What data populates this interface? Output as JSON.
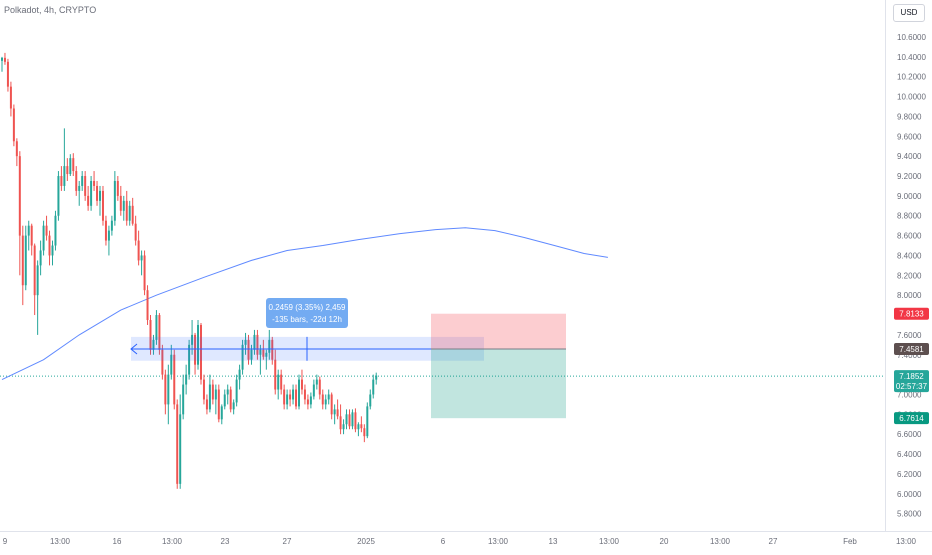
{
  "header": {
    "symbol_title": "Polkadot, 4h, CRYPTO",
    "currency": "USD"
  },
  "chart_data": {
    "type": "candlestick",
    "title": "Polkadot, 4h, CRYPTO",
    "y_axis_labels": [
      "10.6000",
      "10.4000",
      "10.2000",
      "10.0000",
      "9.8000",
      "9.6000",
      "9.4000",
      "9.2000",
      "9.0000",
      "8.8000",
      "8.6000",
      "8.4000",
      "8.2000",
      "8.0000",
      "7.8000",
      "7.6000",
      "7.4000",
      "7.2000",
      "7.0000",
      "6.8000",
      "6.6000",
      "6.4000",
      "6.2000",
      "6.0000",
      "5.8000"
    ],
    "y_axis_values": [
      10.6,
      10.4,
      10.2,
      10.0,
      9.8,
      9.6,
      9.4,
      9.2,
      9.0,
      8.8,
      8.6,
      8.4,
      8.2,
      8.0,
      7.8,
      7.6,
      7.4,
      7.2,
      7.0,
      6.8,
      6.6,
      6.4,
      6.2,
      6.0,
      5.8
    ],
    "x_axis_labels": [
      "9",
      "13:00",
      "16",
      "13:00",
      "23",
      "27",
      "2025",
      "6",
      "13:00",
      "13",
      "13:00",
      "20",
      "13:00",
      "27",
      "Feb",
      "13:00"
    ],
    "colors": {
      "up": "#26a69a",
      "down": "#ef5350",
      "ma": "#2962ff",
      "last_price": "#26a69a",
      "stop": "#f23645",
      "target": "#089981",
      "entry": "#5d4f4f"
    },
    "candles": [
      [
        10.36,
        10.4,
        10.25,
        10.39
      ],
      [
        10.39,
        10.44,
        10.32,
        10.35
      ],
      [
        10.35,
        10.38,
        10.05,
        10.1
      ],
      [
        10.1,
        10.15,
        9.8,
        9.88
      ],
      [
        9.88,
        9.92,
        9.5,
        9.55
      ],
      [
        9.55,
        9.58,
        9.3,
        9.4
      ],
      [
        9.4,
        9.45,
        8.2,
        8.6
      ],
      [
        8.6,
        8.7,
        7.9,
        8.1
      ],
      [
        8.1,
        8.7,
        8.05,
        8.6
      ],
      [
        8.6,
        8.75,
        8.45,
        8.7
      ],
      [
        8.7,
        8.72,
        8.4,
        8.5
      ],
      [
        8.5,
        8.52,
        7.8,
        8.0
      ],
      [
        8.0,
        8.35,
        7.6,
        8.3
      ],
      [
        8.3,
        8.55,
        8.2,
        8.45
      ],
      [
        8.45,
        8.75,
        8.4,
        8.7
      ],
      [
        8.7,
        8.8,
        8.55,
        8.6
      ],
      [
        8.6,
        8.65,
        8.3,
        8.4
      ],
      [
        8.4,
        8.55,
        8.3,
        8.5
      ],
      [
        8.5,
        8.85,
        8.45,
        8.8
      ],
      [
        8.8,
        9.25,
        8.75,
        9.2
      ],
      [
        9.2,
        9.3,
        9.05,
        9.1
      ],
      [
        9.1,
        9.68,
        9.05,
        9.3
      ],
      [
        9.3,
        9.38,
        9.15,
        9.22
      ],
      [
        9.22,
        9.42,
        9.2,
        9.38
      ],
      [
        9.38,
        9.43,
        9.2,
        9.25
      ],
      [
        9.25,
        9.3,
        9.0,
        9.05
      ],
      [
        9.05,
        9.15,
        8.9,
        9.1
      ],
      [
        9.1,
        9.25,
        9.05,
        9.2
      ],
      [
        9.2,
        9.25,
        8.95,
        9.0
      ],
      [
        9.0,
        9.1,
        8.85,
        8.9
      ],
      [
        8.9,
        9.2,
        8.85,
        9.15
      ],
      [
        9.15,
        9.25,
        9.05,
        9.1
      ],
      [
        9.1,
        9.15,
        8.9,
        8.95
      ],
      [
        8.95,
        9.1,
        8.8,
        9.05
      ],
      [
        9.05,
        9.1,
        8.7,
        8.75
      ],
      [
        8.75,
        8.8,
        8.5,
        8.55
      ],
      [
        8.55,
        8.7,
        8.4,
        8.65
      ],
      [
        8.65,
        8.8,
        8.6,
        8.75
      ],
      [
        8.75,
        9.25,
        8.7,
        9.15
      ],
      [
        9.15,
        9.2,
        8.95,
        9.0
      ],
      [
        9.0,
        9.1,
        8.8,
        8.85
      ],
      [
        8.85,
        9.0,
        8.75,
        8.95
      ],
      [
        8.95,
        9.05,
        8.7,
        8.75
      ],
      [
        8.75,
        8.95,
        8.7,
        8.9
      ],
      [
        8.9,
        8.98,
        8.7,
        8.72
      ],
      [
        8.72,
        8.8,
        8.5,
        8.55
      ],
      [
        8.55,
        8.65,
        8.3,
        8.35
      ],
      [
        8.35,
        8.45,
        8.2,
        8.4
      ],
      [
        8.4,
        8.45,
        8.0,
        8.05
      ],
      [
        8.05,
        8.1,
        7.7,
        7.75
      ],
      [
        7.75,
        7.8,
        7.4,
        7.45
      ],
      [
        7.45,
        7.6,
        7.4,
        7.55
      ],
      [
        7.55,
        7.85,
        7.5,
        7.8
      ],
      [
        7.8,
        7.82,
        7.4,
        7.45
      ],
      [
        7.45,
        7.5,
        7.15,
        7.2
      ],
      [
        7.2,
        7.25,
        6.8,
        6.9
      ],
      [
        6.9,
        7.3,
        6.7,
        7.2
      ],
      [
        7.2,
        7.5,
        7.15,
        7.4
      ],
      [
        7.4,
        7.45,
        6.85,
        6.9
      ],
      [
        6.9,
        6.95,
        6.05,
        6.1
      ],
      [
        6.1,
        7.0,
        6.05,
        6.8
      ],
      [
        6.8,
        7.2,
        6.75,
        7.1
      ],
      [
        7.1,
        7.3,
        7.0,
        7.2
      ],
      [
        7.2,
        7.55,
        7.15,
        7.5
      ],
      [
        7.5,
        7.75,
        7.4,
        7.6
      ],
      [
        7.6,
        7.62,
        7.2,
        7.3
      ],
      [
        7.3,
        7.75,
        7.25,
        7.7
      ],
      [
        7.7,
        7.72,
        7.1,
        7.15
      ],
      [
        7.15,
        7.2,
        6.9,
        6.95
      ],
      [
        6.95,
        7.0,
        6.8,
        6.85
      ],
      [
        6.85,
        7.2,
        6.82,
        7.1
      ],
      [
        7.1,
        7.15,
        6.9,
        6.95
      ],
      [
        6.95,
        7.1,
        6.8,
        7.05
      ],
      [
        7.05,
        7.1,
        6.72,
        6.75
      ],
      [
        6.75,
        6.9,
        6.7,
        6.88
      ],
      [
        6.88,
        7.05,
        6.85,
        7.0
      ],
      [
        7.0,
        7.1,
        6.9,
        7.05
      ],
      [
        7.05,
        7.08,
        6.82,
        6.85
      ],
      [
        6.85,
        6.95,
        6.8,
        6.92
      ],
      [
        6.92,
        7.2,
        6.88,
        7.15
      ],
      [
        7.15,
        7.3,
        7.05,
        7.25
      ],
      [
        7.25,
        7.55,
        7.2,
        7.5
      ],
      [
        7.5,
        7.62,
        7.4,
        7.55
      ],
      [
        7.55,
        7.6,
        7.3,
        7.35
      ],
      [
        7.35,
        7.5,
        7.3,
        7.45
      ],
      [
        7.45,
        7.65,
        7.4,
        7.6
      ],
      [
        7.6,
        7.65,
        7.35,
        7.4
      ],
      [
        7.4,
        7.5,
        7.2,
        7.45
      ],
      [
        7.45,
        7.55,
        7.35,
        7.38
      ],
      [
        7.38,
        7.45,
        7.25,
        7.42
      ],
      [
        7.42,
        7.65,
        7.35,
        7.55
      ],
      [
        7.55,
        7.58,
        7.3,
        7.35
      ],
      [
        7.35,
        7.45,
        7.0,
        7.05
      ],
      [
        7.05,
        7.25,
        6.95,
        7.2
      ],
      [
        7.2,
        7.25,
        7.0,
        7.05
      ],
      [
        7.05,
        7.1,
        6.85,
        6.9
      ],
      [
        6.9,
        7.05,
        6.85,
        7.0
      ],
      [
        7.0,
        7.05,
        6.88,
        6.95
      ],
      [
        6.95,
        7.1,
        6.9,
        7.05
      ],
      [
        7.05,
        7.1,
        6.85,
        6.88
      ],
      [
        6.88,
        7.2,
        6.85,
        7.15
      ],
      [
        7.15,
        7.25,
        7.0,
        7.05
      ],
      [
        7.05,
        7.1,
        6.9,
        6.95
      ],
      [
        6.95,
        7.0,
        6.85,
        6.9
      ],
      [
        6.9,
        7.02,
        6.86,
        6.98
      ],
      [
        6.98,
        7.15,
        6.95,
        7.1
      ],
      [
        7.1,
        7.2,
        7.05,
        7.15
      ],
      [
        7.15,
        7.18,
        6.95,
        7.0
      ],
      [
        7.0,
        7.05,
        6.85,
        6.9
      ],
      [
        6.9,
        7.0,
        6.85,
        6.95
      ],
      [
        6.95,
        7.05,
        6.9,
        7.0
      ],
      [
        7.0,
        7.02,
        6.75,
        6.8
      ],
      [
        6.8,
        6.9,
        6.7,
        6.85
      ],
      [
        6.85,
        6.95,
        6.75,
        6.78
      ],
      [
        6.78,
        6.9,
        6.6,
        6.65
      ],
      [
        6.65,
        6.75,
        6.6,
        6.7
      ],
      [
        6.7,
        6.85,
        6.65,
        6.8
      ],
      [
        6.8,
        6.85,
        6.65,
        6.68
      ],
      [
        6.68,
        6.85,
        6.65,
        6.82
      ],
      [
        6.82,
        6.86,
        6.62,
        6.65
      ],
      [
        6.65,
        6.72,
        6.58,
        6.7
      ],
      [
        6.7,
        6.78,
        6.62,
        6.66
      ],
      [
        6.66,
        6.7,
        6.52,
        6.58
      ],
      [
        6.58,
        6.92,
        6.56,
        6.88
      ],
      [
        6.88,
        7.05,
        6.85,
        7.0
      ],
      [
        7.0,
        7.2,
        6.96,
        7.15
      ],
      [
        7.15,
        7.22,
        7.1,
        7.19
      ]
    ],
    "moving_average": [
      [
        7.15,
        0
      ],
      [
        7.35,
        14
      ],
      [
        7.6,
        26
      ],
      [
        7.85,
        40
      ],
      [
        8.0,
        52
      ],
      [
        8.18,
        68
      ],
      [
        8.35,
        84
      ],
      [
        8.45,
        96
      ],
      [
        8.5,
        108
      ],
      [
        8.56,
        120
      ],
      [
        8.62,
        134
      ],
      [
        8.66,
        146
      ],
      [
        8.68,
        156
      ],
      [
        8.65,
        166
      ],
      [
        8.58,
        176
      ],
      [
        8.5,
        186
      ],
      [
        8.42,
        196
      ],
      [
        8.38,
        204
      ]
    ],
    "measure_tool": {
      "label_line1": "0.2459 (3.35%) 2,459",
      "label_line2": "-135 bars, -22d 12h",
      "price_top": 7.58,
      "price_bottom": 7.34,
      "price_line": 7.4581
    },
    "position_tool": {
      "entry": 7.4581,
      "stop": 7.8133,
      "target": 6.7614
    },
    "price_labels": {
      "stop": "7.8133",
      "entry": "7.4581",
      "last": "7.1852",
      "countdown": "02:57:37",
      "target": "6.7614"
    },
    "last_price": 7.1852,
    "ylim": [
      5.7,
      10.75
    ]
  }
}
